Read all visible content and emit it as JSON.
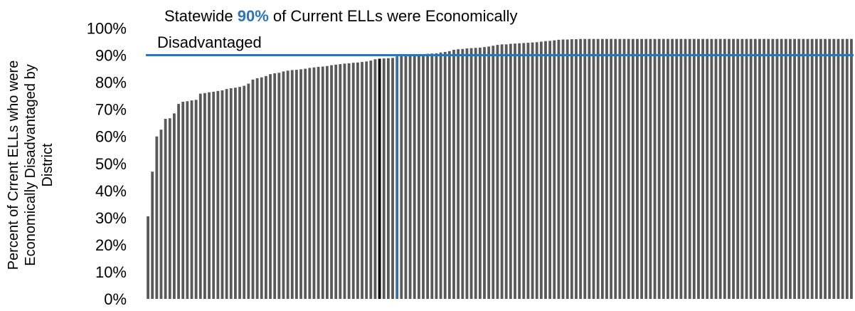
{
  "chart_data": {
    "type": "bar",
    "title": "",
    "ylabel_lines": [
      "Percent of Crrent ELLs who were",
      "Economically Disadvantaged by",
      "District"
    ],
    "annotation": {
      "prefix": "Statewide ",
      "highlight": "90%",
      "suffix": " of Current ELLs were Economically",
      "line2": "Disadvantaged"
    },
    "ylim": [
      0,
      1
    ],
    "y_ticks": [
      {
        "value": 0,
        "label": "0%"
      },
      {
        "value": 0.1,
        "label": "10%"
      },
      {
        "value": 0.2,
        "label": "20%"
      },
      {
        "value": 0.3,
        "label": "30%"
      },
      {
        "value": 0.4,
        "label": "40%"
      },
      {
        "value": 0.5,
        "label": "50%"
      },
      {
        "value": 0.6,
        "label": "60%"
      },
      {
        "value": 0.7,
        "label": "70%"
      },
      {
        "value": 0.8,
        "label": "80%"
      },
      {
        "value": 0.9,
        "label": "90%"
      },
      {
        "value": 1.0,
        "label": "100%"
      }
    ],
    "reference_line": {
      "value": 0.9
    },
    "vertical_marker_index": 57,
    "highlight_bar_index": 53,
    "grid": false,
    "legend": "none",
    "values": [
      0.305,
      0.47,
      0.6,
      0.625,
      0.665,
      0.667,
      0.685,
      0.72,
      0.728,
      0.73,
      0.733,
      0.735,
      0.758,
      0.76,
      0.763,
      0.765,
      0.768,
      0.77,
      0.775,
      0.778,
      0.78,
      0.783,
      0.787,
      0.795,
      0.81,
      0.815,
      0.818,
      0.823,
      0.83,
      0.833,
      0.835,
      0.84,
      0.843,
      0.845,
      0.846,
      0.848,
      0.85,
      0.853,
      0.855,
      0.857,
      0.858,
      0.86,
      0.863,
      0.865,
      0.867,
      0.869,
      0.87,
      0.872,
      0.873,
      0.875,
      0.877,
      0.88,
      0.885,
      0.887,
      0.888,
      0.889,
      0.89,
      0.895,
      0.897,
      0.9,
      0.9,
      0.901,
      0.902,
      0.903,
      0.905,
      0.906,
      0.907,
      0.91,
      0.912,
      0.915,
      0.92,
      0.922,
      0.923,
      0.925,
      0.926,
      0.927,
      0.928,
      0.93,
      0.932,
      0.935,
      0.938,
      0.94,
      0.94,
      0.942,
      0.943,
      0.944,
      0.945,
      0.946,
      0.947,
      0.948,
      0.95,
      0.952,
      0.953,
      0.955,
      0.957,
      0.958,
      0.958,
      0.959,
      0.959,
      0.96,
      0.96,
      0.96,
      0.96,
      0.96,
      0.96,
      0.96,
      0.96,
      0.96,
      0.96,
      0.96,
      0.96,
      0.96,
      0.96,
      0.96,
      0.96,
      0.96,
      0.96,
      0.96,
      0.96,
      0.96,
      0.96,
      0.96,
      0.96,
      0.96,
      0.96,
      0.96,
      0.96,
      0.96,
      0.96,
      0.96,
      0.96,
      0.96,
      0.96,
      0.96,
      0.96,
      0.96,
      0.96,
      0.96,
      0.96,
      0.96,
      0.96,
      0.96,
      0.96,
      0.96,
      0.96,
      0.96,
      0.96,
      0.96,
      0.96,
      0.96,
      0.96,
      0.96,
      0.96,
      0.96,
      0.96,
      0.96,
      0.96,
      0.96,
      0.96,
      0.96,
      0.96,
      0.96
    ],
    "colors": {
      "bar": "#595959",
      "bar_highlight": "#000000",
      "reference": "#2E75B6",
      "highlight_text": "#2E75B6",
      "text": "#000000"
    }
  }
}
